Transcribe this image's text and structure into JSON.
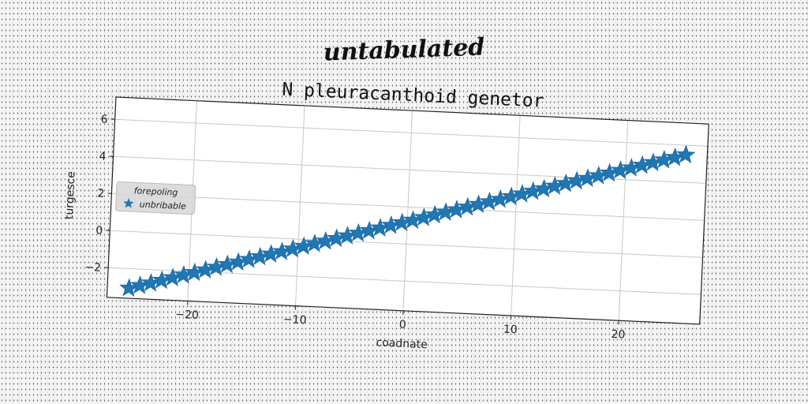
{
  "suptitle": "untabulated",
  "chart_data": {
    "type": "scatter",
    "title": "N pleuracanthoid genetor",
    "xlabel": "coadnate",
    "ylabel": "turgesce",
    "xlim": [
      -27.5,
      27.5
    ],
    "ylim": [
      -3.6,
      7.2
    ],
    "xticks": [
      -20,
      -10,
      0,
      10,
      20
    ],
    "xtick_labels": [
      "−20",
      "−10",
      "0",
      "10",
      "20"
    ],
    "yticks": [
      -2,
      0,
      2,
      4,
      6
    ],
    "ytick_labels": [
      "−2",
      "0",
      "2",
      "4",
      "6"
    ],
    "grid": true,
    "legend": {
      "title": "forepoling",
      "placement": "center-left",
      "entries": [
        "unbribable"
      ]
    },
    "series": [
      {
        "name": "unbribable",
        "marker": "star",
        "color": "#1f77b4",
        "x": [
          -25.5,
          -24.5,
          -23.5,
          -22.5,
          -21.5,
          -20.5,
          -19.5,
          -18.5,
          -17.5,
          -16.5,
          -15.5,
          -14.5,
          -13.5,
          -12.5,
          -11.5,
          -10.5,
          -9.5,
          -8.5,
          -7.5,
          -6.5,
          -5.5,
          -4.5,
          -3.5,
          -2.5,
          -1.5,
          -0.5,
          0.5,
          1.5,
          2.5,
          3.5,
          4.5,
          5.5,
          6.5,
          7.5,
          8.5,
          9.5,
          10.5,
          11.5,
          12.5,
          13.5,
          14.5,
          15.5,
          16.5,
          17.5,
          18.5,
          19.5,
          20.5,
          21.5,
          22.5,
          23.5,
          24.5,
          25.5
        ],
        "y": [
          -3.06,
          -2.89,
          -2.73,
          -2.56,
          -2.39,
          -2.22,
          -2.06,
          -1.89,
          -1.72,
          -1.55,
          -1.39,
          -1.22,
          -1.05,
          -0.88,
          -0.72,
          -0.55,
          -0.38,
          -0.21,
          -0.05,
          0.12,
          0.29,
          0.46,
          0.62,
          0.79,
          0.96,
          1.13,
          1.29,
          1.46,
          1.63,
          1.8,
          1.96,
          2.13,
          2.3,
          2.47,
          2.63,
          2.8,
          2.97,
          3.14,
          3.3,
          3.47,
          3.64,
          3.81,
          3.97,
          4.14,
          4.31,
          4.48,
          4.64,
          4.81,
          4.98,
          5.15,
          5.31,
          5.48
        ]
      }
    ]
  }
}
